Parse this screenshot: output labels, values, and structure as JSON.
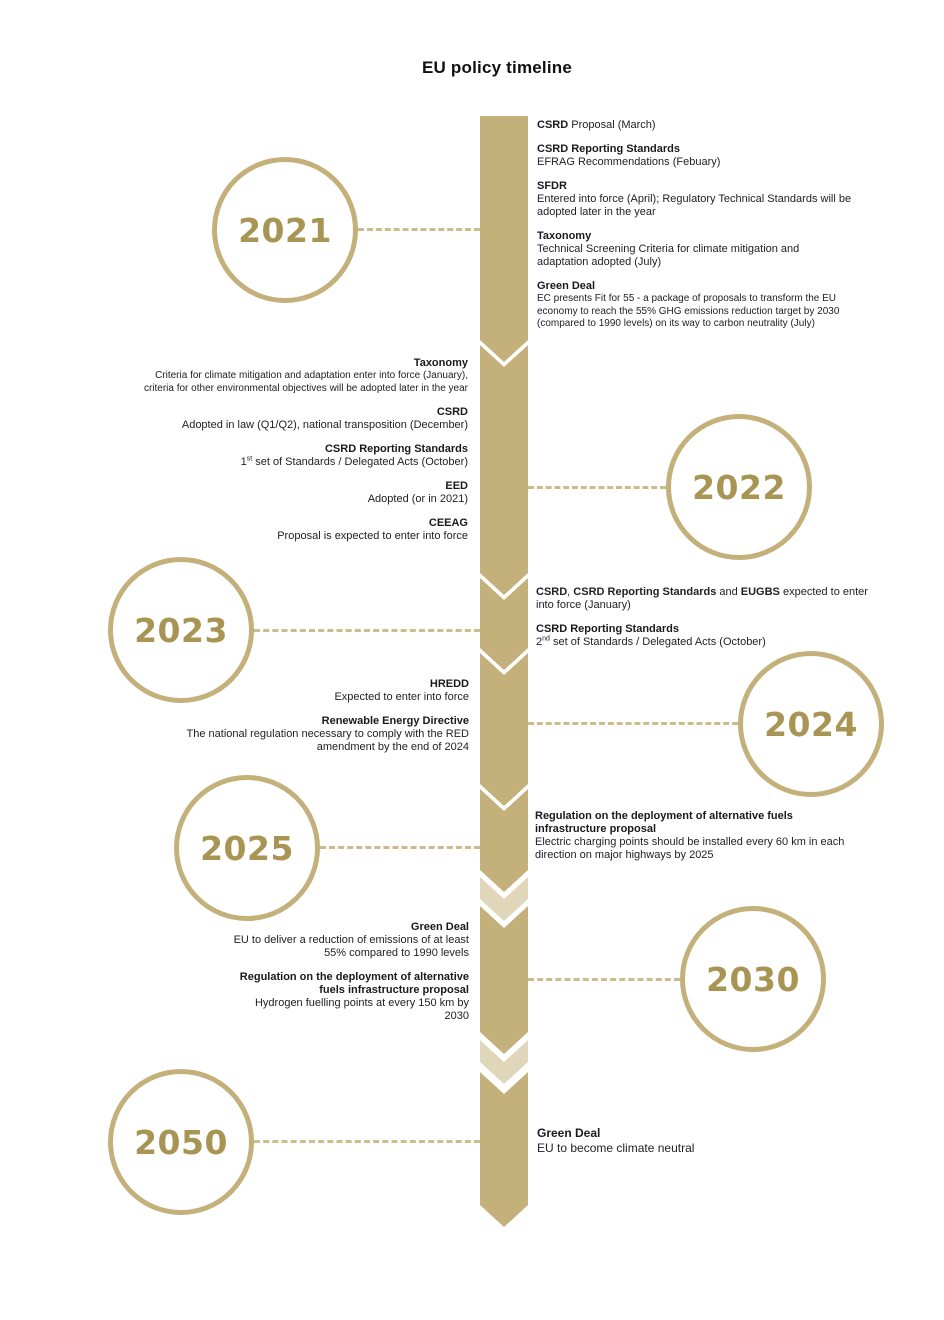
{
  "title": "EU policy timeline",
  "colors": {
    "gold": "#c4b07a",
    "gold_light": "#e0d6b9",
    "year_text": "#a89554",
    "connector": "#cdbb8b"
  },
  "years": {
    "y2021": "2021",
    "y2022": "2022",
    "y2023": "2023",
    "y2024": "2024",
    "y2025": "2025",
    "y2030": "2030",
    "y2050": "2050"
  },
  "blocks": {
    "b2021": {
      "e0": {
        "title": "CSRD",
        "desc": " Proposal (March)"
      },
      "e1": {
        "title": "CSRD Reporting Standards",
        "desc": "EFRAG Recommendations (Febuary)"
      },
      "e2": {
        "title": "SFDR",
        "desc": "Entered into force (April); Regulatory Technical Standards will be adopted later in the year"
      },
      "e3": {
        "title": "Taxonomy",
        "desc": "Technical Screening Criteria for climate mitigation and adaptation adopted (July)"
      },
      "e4": {
        "title": "Green Deal",
        "desc": "EC presents Fit for 55 - a package of proposals to transform the EU economy to reach the 55% GHG emissions reduction target by 2030 (compared to 1990 levels) on its way to carbon neutrality (July)"
      }
    },
    "b2022": {
      "e0": {
        "title": "Taxonomy",
        "desc": "Criteria for climate mitigation and adaptation enter into force (January), criteria for other environmental objectives will be adopted later in the year"
      },
      "e1": {
        "title": "CSRD",
        "desc": "Adopted in law (Q1/Q2), national transposition (December)"
      },
      "e2": {
        "title": "CSRD Reporting Standards",
        "desc_pre": "1",
        "desc_sup": "st",
        "desc_post": " set of Standards / Delegated Acts (October)"
      },
      "e3": {
        "title": "EED",
        "desc": "Adopted (or in 2021)"
      },
      "e4": {
        "title": "CEEAG",
        "desc": "Proposal is expected to enter into force"
      }
    },
    "b2023": {
      "e0": {
        "t1": "CSRD",
        "s1": ", ",
        "t2": "CSRD Reporting Standards",
        "s2": " and ",
        "t3": "EUGBS",
        "rest": " expected to enter into force (January)"
      },
      "e1": {
        "title": "CSRD Reporting Standards",
        "desc_pre": "2",
        "desc_sup": "nd",
        "desc_post": " set of Standards / Delegated Acts (October)"
      }
    },
    "b2024": {
      "e0": {
        "title": "HREDD",
        "desc": "Expected to enter into force"
      },
      "e1": {
        "title": "Renewable Energy Directive",
        "desc": "The national regulation necessary to comply with the RED amendment by the end of 2024"
      }
    },
    "b2025": {
      "e0": {
        "title": "Regulation on the deployment of alternative fuels infrastructure proposal",
        "desc": "Electric charging points should be installed every 60 km in each direction on major highways by 2025"
      }
    },
    "b2030": {
      "e0": {
        "title": "Green Deal",
        "desc": "EU to deliver a reduction of emissions of at least 55% compared to 1990 levels"
      },
      "e1": {
        "title": "Regulation on the deployment of alternative fuels infrastructure proposal",
        "desc": "Hydrogen fuelling points at every 150 km by 2030"
      }
    },
    "b2050": {
      "e0": {
        "title": "Green Deal",
        "desc": "EU to become climate neutral"
      }
    }
  }
}
